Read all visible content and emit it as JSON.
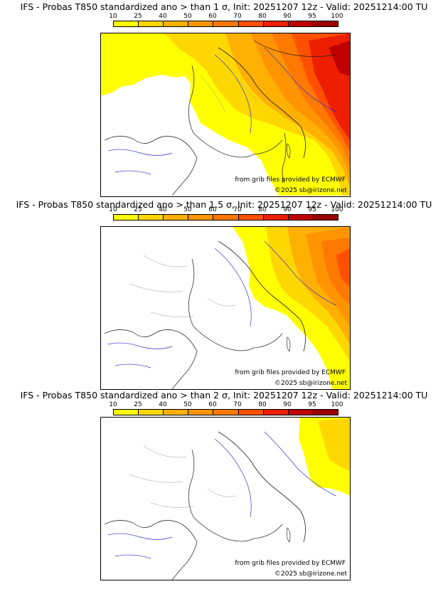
{
  "colorbar": {
    "labels": [
      "10",
      "25",
      "40",
      "50",
      "60",
      "70",
      "80",
      "90",
      "95",
      "100"
    ],
    "colors": [
      "#ffff00",
      "#ffd700",
      "#ffb000",
      "#ff9400",
      "#ff7800",
      "#ff5000",
      "#ee1f00",
      "#c00000",
      "#9a0000",
      "#700000"
    ]
  },
  "panels": [
    {
      "title": "IFS - Probas T850  standardized ano > than 1 σ, Init: 20251207 12z - Valid: 20251214:00 TU",
      "threshold_sigma": 1,
      "credit": "from grib files provided by ECMWF",
      "copyright": "©2025 sb@irizone.net"
    },
    {
      "title": "IFS - Probas T850  standardized ano > than 1.5 σ, Init: 20251207 12z - Valid: 20251214:00 TU",
      "threshold_sigma": 1.5,
      "credit": "from grib files provided by ECMWF",
      "copyright": "©2025 sb@irizone.net"
    },
    {
      "title": "IFS - Probas T850  standardized ano > than 2 σ, Init: 20251207 12z - Valid: 20251214:00 TU",
      "threshold_sigma": 2,
      "credit": "from grib files provided by ECMWF",
      "copyright": "©2025 sb@irizone.net"
    }
  ]
}
